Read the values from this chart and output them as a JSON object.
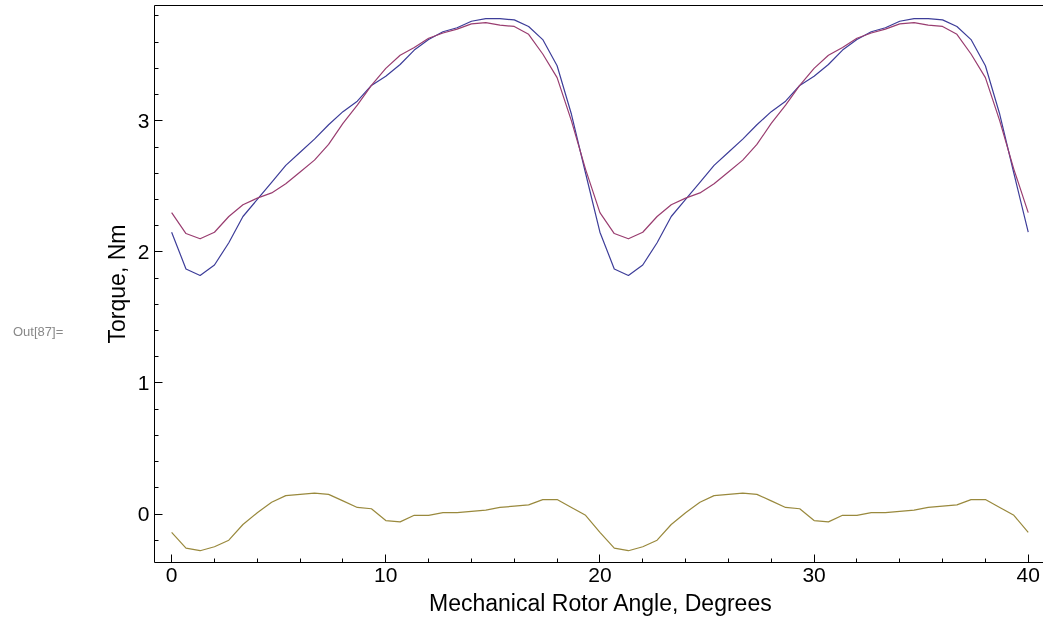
{
  "chart_data": {
    "type": "line",
    "xlabel": "Mechanical Rotor Angle, Degrees",
    "ylabel": "Torque, Nm",
    "annotations": [
      "Out[87]="
    ],
    "x": [
      0,
      0.67,
      1.33,
      2,
      2.67,
      3.33,
      4,
      4.67,
      5.33,
      6,
      6.67,
      7.33,
      8,
      8.67,
      9.33,
      10,
      10.67,
      11.33,
      12,
      12.67,
      13.33,
      14,
      14.67,
      15.33,
      16,
      16.67,
      17.33,
      18,
      18.67,
      19.33,
      20,
      20.67,
      21.33,
      22,
      22.67,
      23.33,
      24,
      24.67,
      25.33,
      26,
      26.67,
      27.33,
      28,
      28.67,
      29.33,
      30,
      30.67,
      31.33,
      32,
      32.67,
      33.33,
      34,
      34.67,
      35.33,
      36,
      36.67,
      37.33,
      38,
      38.67,
      39.33,
      40
    ],
    "series": [
      {
        "color": "#3d3d99",
        "values": [
          2.15,
          1.87,
          1.82,
          1.9,
          2.07,
          2.27,
          2.4,
          2.53,
          2.66,
          2.76,
          2.86,
          2.97,
          3.07,
          3.15,
          3.27,
          3.34,
          3.43,
          3.54,
          3.62,
          3.68,
          3.71,
          3.76,
          3.78,
          3.78,
          3.77,
          3.72,
          3.62,
          3.42,
          3.05,
          2.6,
          2.15,
          1.87,
          1.82,
          1.9,
          2.07,
          2.27,
          2.4,
          2.53,
          2.66,
          2.76,
          2.86,
          2.97,
          3.07,
          3.15,
          3.27,
          3.34,
          3.43,
          3.54,
          3.62,
          3.68,
          3.71,
          3.76,
          3.78,
          3.78,
          3.77,
          3.72,
          3.62,
          3.42,
          3.05,
          2.6,
          2.15
        ]
      },
      {
        "color": "#993d70",
        "values": [
          2.3,
          2.14,
          2.1,
          2.15,
          2.27,
          2.36,
          2.41,
          2.45,
          2.52,
          2.61,
          2.7,
          2.82,
          2.98,
          3.12,
          3.27,
          3.4,
          3.5,
          3.56,
          3.63,
          3.67,
          3.7,
          3.74,
          3.75,
          3.73,
          3.72,
          3.66,
          3.51,
          3.33,
          3.0,
          2.63,
          2.3,
          2.14,
          2.1,
          2.15,
          2.27,
          2.36,
          2.41,
          2.45,
          2.52,
          2.61,
          2.7,
          2.82,
          2.98,
          3.12,
          3.27,
          3.4,
          3.5,
          3.56,
          3.63,
          3.67,
          3.7,
          3.74,
          3.75,
          3.73,
          3.72,
          3.66,
          3.51,
          3.33,
          3.0,
          2.63,
          2.3
        ]
      },
      {
        "color": "#99893d",
        "values": [
          -0.14,
          -0.26,
          -0.28,
          -0.25,
          -0.2,
          -0.08,
          0.01,
          0.09,
          0.14,
          0.15,
          0.16,
          0.15,
          0.1,
          0.05,
          0.04,
          -0.05,
          -0.06,
          -0.01,
          -0.01,
          0.01,
          0.01,
          0.02,
          0.03,
          0.05,
          0.06,
          0.07,
          0.11,
          0.11,
          0.05,
          -0.01,
          -0.14,
          -0.26,
          -0.28,
          -0.25,
          -0.2,
          -0.08,
          0.01,
          0.09,
          0.14,
          0.15,
          0.16,
          0.15,
          0.1,
          0.05,
          0.04,
          -0.05,
          -0.06,
          -0.01,
          -0.01,
          0.01,
          0.01,
          0.02,
          0.03,
          0.05,
          0.06,
          0.07,
          0.11,
          0.11,
          0.05,
          -0.01,
          -0.14
        ]
      }
    ],
    "xlim": [
      -0.8,
      40.9
    ],
    "ylim": [
      -0.37,
      3.88
    ],
    "xticks": [
      0,
      {
        "value": 2,
        "label": null
      },
      {
        "value": 4,
        "label": null
      },
      {
        "value": 6,
        "label": null
      },
      {
        "value": 8,
        "label": null
      },
      10,
      {
        "value": 12,
        "label": null
      },
      {
        "value": 14,
        "label": null
      },
      {
        "value": 16,
        "label": null
      },
      {
        "value": 18,
        "label": null
      },
      20,
      {
        "value": 22,
        "label": null
      },
      {
        "value": 24,
        "label": null
      },
      {
        "value": 26,
        "label": null
      },
      {
        "value": 28,
        "label": null
      },
      30,
      {
        "value": 32,
        "label": null
      },
      {
        "value": 34,
        "label": null
      },
      {
        "value": 36,
        "label": null
      },
      {
        "value": 38,
        "label": null
      },
      40
    ],
    "yticks": [
      {
        "value": -0.2,
        "label": null
      },
      0,
      {
        "value": 0.2,
        "label": null
      },
      {
        "value": 0.4,
        "label": null
      },
      {
        "value": 0.6,
        "label": null
      },
      {
        "value": 0.8,
        "label": null
      },
      1,
      {
        "value": 1.2,
        "label": null
      },
      {
        "value": 1.4,
        "label": null
      },
      {
        "value": 1.6,
        "label": null
      },
      {
        "value": 1.8,
        "label": null
      },
      2,
      {
        "value": 2.2,
        "label": null
      },
      {
        "value": 2.4,
        "label": null
      },
      {
        "value": 2.6,
        "label": null
      },
      {
        "value": 2.8,
        "label": null
      },
      3,
      {
        "value": 3.2,
        "label": null
      },
      {
        "value": 3.4,
        "label": null
      },
      {
        "value": 3.6,
        "label": null
      },
      {
        "value": 3.8,
        "label": null
      }
    ],
    "grid": false
  }
}
